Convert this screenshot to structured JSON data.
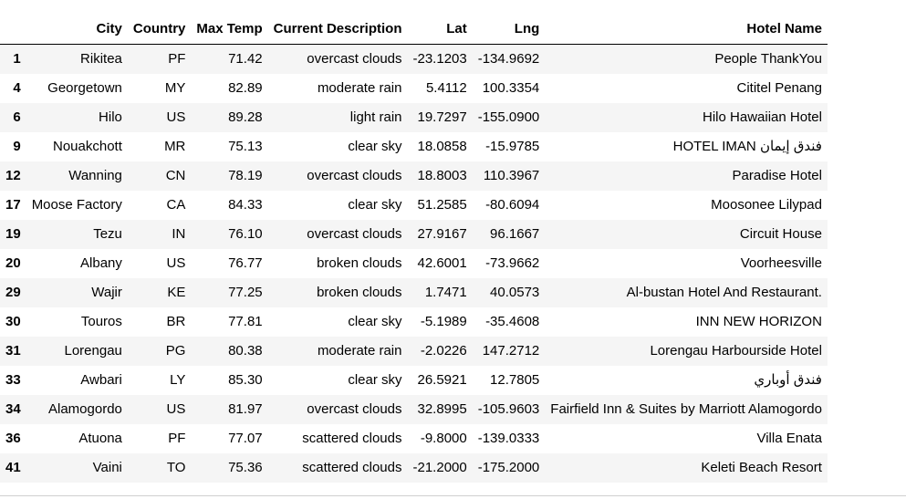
{
  "table": {
    "headers": {
      "index": "",
      "city": "City",
      "country": "Country",
      "max_temp": "Max Temp",
      "description": "Current Description",
      "lat": "Lat",
      "lng": "Lng",
      "hotel": "Hotel Name"
    },
    "rows": [
      {
        "index": "1",
        "city": "Rikitea",
        "country": "PF",
        "max_temp": "71.42",
        "description": "overcast clouds",
        "lat": "-23.1203",
        "lng": "-134.9692",
        "hotel": "People ThankYou"
      },
      {
        "index": "4",
        "city": "Georgetown",
        "country": "MY",
        "max_temp": "82.89",
        "description": "moderate rain",
        "lat": "5.4112",
        "lng": "100.3354",
        "hotel": "Cititel Penang"
      },
      {
        "index": "6",
        "city": "Hilo",
        "country": "US",
        "max_temp": "89.28",
        "description": "light rain",
        "lat": "19.7297",
        "lng": "-155.0900",
        "hotel": "Hilo Hawaiian Hotel"
      },
      {
        "index": "9",
        "city": "Nouakchott",
        "country": "MR",
        "max_temp": "75.13",
        "description": "clear sky",
        "lat": "18.0858",
        "lng": "-15.9785",
        "hotel": "HOTEL IMAN فندق إيمان"
      },
      {
        "index": "12",
        "city": "Wanning",
        "country": "CN",
        "max_temp": "78.19",
        "description": "overcast clouds",
        "lat": "18.8003",
        "lng": "110.3967",
        "hotel": "Paradise Hotel"
      },
      {
        "index": "17",
        "city": "Moose Factory",
        "country": "CA",
        "max_temp": "84.33",
        "description": "clear sky",
        "lat": "51.2585",
        "lng": "-80.6094",
        "hotel": "Moosonee Lilypad"
      },
      {
        "index": "19",
        "city": "Tezu",
        "country": "IN",
        "max_temp": "76.10",
        "description": "overcast clouds",
        "lat": "27.9167",
        "lng": "96.1667",
        "hotel": "Circuit House"
      },
      {
        "index": "20",
        "city": "Albany",
        "country": "US",
        "max_temp": "76.77",
        "description": "broken clouds",
        "lat": "42.6001",
        "lng": "-73.9662",
        "hotel": "Voorheesville"
      },
      {
        "index": "29",
        "city": "Wajir",
        "country": "KE",
        "max_temp": "77.25",
        "description": "broken clouds",
        "lat": "1.7471",
        "lng": "40.0573",
        "hotel": "Al-bustan Hotel And Restaurant."
      },
      {
        "index": "30",
        "city": "Touros",
        "country": "BR",
        "max_temp": "77.81",
        "description": "clear sky",
        "lat": "-5.1989",
        "lng": "-35.4608",
        "hotel": "INN NEW HORIZON"
      },
      {
        "index": "31",
        "city": "Lorengau",
        "country": "PG",
        "max_temp": "80.38",
        "description": "moderate rain",
        "lat": "-2.0226",
        "lng": "147.2712",
        "hotel": "Lorengau Harbourside Hotel"
      },
      {
        "index": "33",
        "city": "Awbari",
        "country": "LY",
        "max_temp": "85.30",
        "description": "clear sky",
        "lat": "26.5921",
        "lng": "12.7805",
        "hotel": "فندق أوباري"
      },
      {
        "index": "34",
        "city": "Alamogordo",
        "country": "US",
        "max_temp": "81.97",
        "description": "overcast clouds",
        "lat": "32.8995",
        "lng": "-105.9603",
        "hotel": "Fairfield Inn & Suites by Marriott Alamogordo"
      },
      {
        "index": "36",
        "city": "Atuona",
        "country": "PF",
        "max_temp": "77.07",
        "description": "scattered clouds",
        "lat": "-9.8000",
        "lng": "-139.0333",
        "hotel": "Villa Enata"
      },
      {
        "index": "41",
        "city": "Vaini",
        "country": "TO",
        "max_temp": "75.36",
        "description": "scattered clouds",
        "lat": "-21.2000",
        "lng": "-175.2000",
        "hotel": "Keleti Beach Resort"
      }
    ]
  }
}
